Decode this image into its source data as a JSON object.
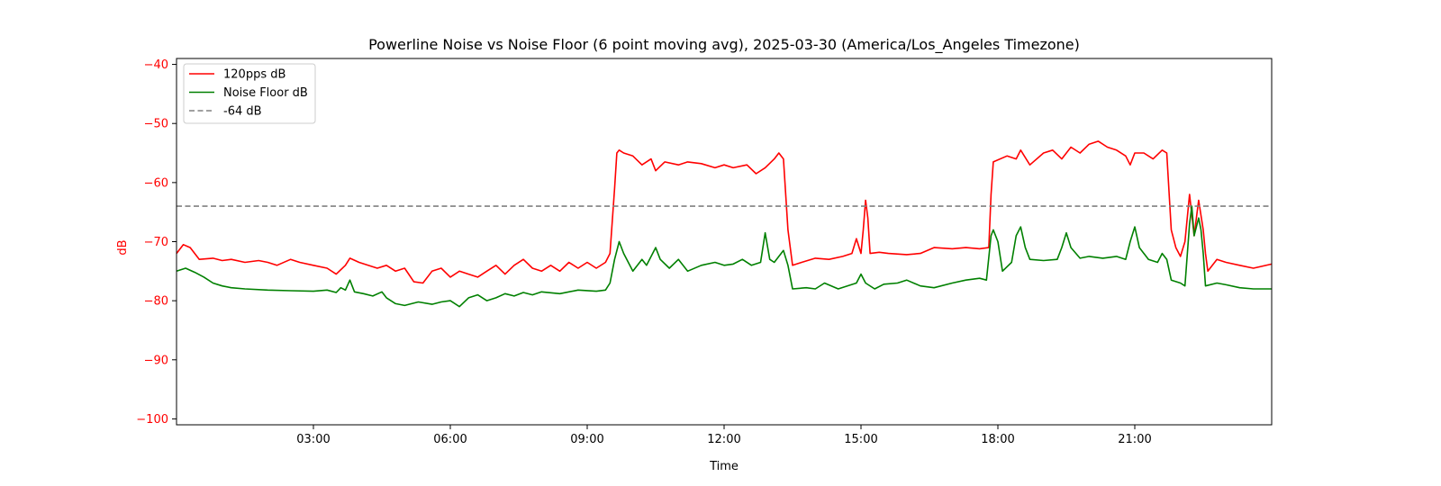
{
  "chart_data": {
    "type": "line",
    "title": "Powerline Noise vs Noise Floor (6 point moving avg), 2025-03-30 (America/Los_Angeles Timezone)",
    "xlabel": "Time",
    "ylabel": "dB",
    "xlim": [
      0,
      24
    ],
    "ylim": [
      -101,
      -39
    ],
    "x_ticks": [
      {
        "value": 3,
        "label": "03:00"
      },
      {
        "value": 6,
        "label": "06:00"
      },
      {
        "value": 9,
        "label": "09:00"
      },
      {
        "value": 12,
        "label": "12:00"
      },
      {
        "value": 15,
        "label": "15:00"
      },
      {
        "value": 18,
        "label": "18:00"
      },
      {
        "value": 21,
        "label": "21:00"
      }
    ],
    "y_ticks": [
      -40,
      -50,
      -60,
      -70,
      -80,
      -90,
      -100
    ],
    "y_tick_color": "#ff0000",
    "grid": false,
    "legend_position": "top-left",
    "series": [
      {
        "name": "120pps dB",
        "color": "#ff0000",
        "style": "solid",
        "points": [
          [
            0.0,
            -72
          ],
          [
            0.15,
            -70.5
          ],
          [
            0.3,
            -71
          ],
          [
            0.5,
            -73
          ],
          [
            0.8,
            -72.8
          ],
          [
            1.0,
            -73.2
          ],
          [
            1.2,
            -73
          ],
          [
            1.5,
            -73.5
          ],
          [
            1.8,
            -73.2
          ],
          [
            2.0,
            -73.5
          ],
          [
            2.2,
            -74
          ],
          [
            2.5,
            -73
          ],
          [
            2.7,
            -73.5
          ],
          [
            3.0,
            -74
          ],
          [
            3.3,
            -74.5
          ],
          [
            3.5,
            -75.5
          ],
          [
            3.7,
            -74
          ],
          [
            3.8,
            -72.8
          ],
          [
            4.0,
            -73.5
          ],
          [
            4.2,
            -74
          ],
          [
            4.4,
            -74.5
          ],
          [
            4.6,
            -74
          ],
          [
            4.8,
            -75
          ],
          [
            5.0,
            -74.5
          ],
          [
            5.2,
            -76.8
          ],
          [
            5.4,
            -77
          ],
          [
            5.6,
            -75
          ],
          [
            5.8,
            -74.5
          ],
          [
            6.0,
            -76
          ],
          [
            6.2,
            -75
          ],
          [
            6.4,
            -75.5
          ],
          [
            6.6,
            -76
          ],
          [
            6.8,
            -75
          ],
          [
            7.0,
            -74
          ],
          [
            7.2,
            -75.5
          ],
          [
            7.4,
            -74
          ],
          [
            7.6,
            -73
          ],
          [
            7.8,
            -74.5
          ],
          [
            8.0,
            -75
          ],
          [
            8.2,
            -74
          ],
          [
            8.4,
            -75
          ],
          [
            8.6,
            -73.5
          ],
          [
            8.8,
            -74.5
          ],
          [
            9.0,
            -73.5
          ],
          [
            9.2,
            -74.5
          ],
          [
            9.4,
            -73.5
          ],
          [
            9.5,
            -72
          ],
          [
            9.6,
            -61
          ],
          [
            9.65,
            -55
          ],
          [
            9.7,
            -54.5
          ],
          [
            9.8,
            -55
          ],
          [
            10.0,
            -55.5
          ],
          [
            10.2,
            -57
          ],
          [
            10.4,
            -56
          ],
          [
            10.5,
            -58
          ],
          [
            10.7,
            -56.5
          ],
          [
            11.0,
            -57
          ],
          [
            11.2,
            -56.5
          ],
          [
            11.5,
            -56.8
          ],
          [
            11.8,
            -57.5
          ],
          [
            12.0,
            -57
          ],
          [
            12.2,
            -57.5
          ],
          [
            12.5,
            -57
          ],
          [
            12.7,
            -58.5
          ],
          [
            12.9,
            -57.5
          ],
          [
            13.1,
            -56
          ],
          [
            13.2,
            -55
          ],
          [
            13.3,
            -56
          ],
          [
            13.4,
            -68
          ],
          [
            13.5,
            -74
          ],
          [
            13.7,
            -73.5
          ],
          [
            14.0,
            -72.8
          ],
          [
            14.3,
            -73
          ],
          [
            14.6,
            -72.5
          ],
          [
            14.8,
            -72
          ],
          [
            14.9,
            -69.5
          ],
          [
            15.0,
            -72
          ],
          [
            15.05,
            -68
          ],
          [
            15.1,
            -63
          ],
          [
            15.15,
            -66
          ],
          [
            15.2,
            -72
          ],
          [
            15.4,
            -71.8
          ],
          [
            15.6,
            -72
          ],
          [
            16.0,
            -72.2
          ],
          [
            16.3,
            -72
          ],
          [
            16.6,
            -71
          ],
          [
            17.0,
            -71.2
          ],
          [
            17.3,
            -71
          ],
          [
            17.6,
            -71.2
          ],
          [
            17.8,
            -71
          ],
          [
            17.85,
            -62
          ],
          [
            17.9,
            -56.5
          ],
          [
            18.2,
            -55.5
          ],
          [
            18.4,
            -56
          ],
          [
            18.5,
            -54.5
          ],
          [
            18.7,
            -57
          ],
          [
            19.0,
            -55
          ],
          [
            19.2,
            -54.5
          ],
          [
            19.4,
            -56
          ],
          [
            19.6,
            -54
          ],
          [
            19.8,
            -55
          ],
          [
            20.0,
            -53.5
          ],
          [
            20.2,
            -53
          ],
          [
            20.4,
            -54
          ],
          [
            20.6,
            -54.5
          ],
          [
            20.8,
            -55.5
          ],
          [
            20.9,
            -57
          ],
          [
            21.0,
            -55
          ],
          [
            21.2,
            -55
          ],
          [
            21.4,
            -56
          ],
          [
            21.6,
            -54.5
          ],
          [
            21.7,
            -55
          ],
          [
            21.8,
            -68
          ],
          [
            21.9,
            -71
          ],
          [
            22.0,
            -72.5
          ],
          [
            22.1,
            -70
          ],
          [
            22.2,
            -62
          ],
          [
            22.3,
            -69
          ],
          [
            22.4,
            -63
          ],
          [
            22.5,
            -68
          ],
          [
            22.55,
            -72
          ],
          [
            22.6,
            -75
          ],
          [
            22.8,
            -73
          ],
          [
            23.0,
            -73.5
          ],
          [
            23.3,
            -74
          ],
          [
            23.6,
            -74.5
          ],
          [
            24.0,
            -73.8
          ]
        ]
      },
      {
        "name": "Noise Floor dB",
        "color": "#008000",
        "style": "solid",
        "points": [
          [
            0.0,
            -75
          ],
          [
            0.2,
            -74.5
          ],
          [
            0.4,
            -75.2
          ],
          [
            0.6,
            -76
          ],
          [
            0.8,
            -77
          ],
          [
            1.0,
            -77.5
          ],
          [
            1.2,
            -77.8
          ],
          [
            1.5,
            -78
          ],
          [
            2.0,
            -78.2
          ],
          [
            2.5,
            -78.3
          ],
          [
            3.0,
            -78.4
          ],
          [
            3.3,
            -78.2
          ],
          [
            3.5,
            -78.6
          ],
          [
            3.6,
            -77.8
          ],
          [
            3.7,
            -78.2
          ],
          [
            3.8,
            -76.5
          ],
          [
            3.9,
            -78.5
          ],
          [
            4.1,
            -78.8
          ],
          [
            4.3,
            -79.2
          ],
          [
            4.5,
            -78.5
          ],
          [
            4.6,
            -79.5
          ],
          [
            4.8,
            -80.5
          ],
          [
            5.0,
            -80.8
          ],
          [
            5.3,
            -80.2
          ],
          [
            5.6,
            -80.6
          ],
          [
            5.8,
            -80.2
          ],
          [
            6.0,
            -80
          ],
          [
            6.2,
            -81
          ],
          [
            6.4,
            -79.5
          ],
          [
            6.6,
            -79
          ],
          [
            6.8,
            -80
          ],
          [
            7.0,
            -79.5
          ],
          [
            7.2,
            -78.8
          ],
          [
            7.4,
            -79.2
          ],
          [
            7.6,
            -78.6
          ],
          [
            7.8,
            -79
          ],
          [
            8.0,
            -78.5
          ],
          [
            8.4,
            -78.8
          ],
          [
            8.8,
            -78.2
          ],
          [
            9.2,
            -78.4
          ],
          [
            9.4,
            -78.2
          ],
          [
            9.5,
            -77
          ],
          [
            9.6,
            -73
          ],
          [
            9.7,
            -70
          ],
          [
            9.8,
            -72
          ],
          [
            10.0,
            -75
          ],
          [
            10.2,
            -73
          ],
          [
            10.3,
            -74
          ],
          [
            10.5,
            -71
          ],
          [
            10.6,
            -73
          ],
          [
            10.8,
            -74.5
          ],
          [
            11.0,
            -73
          ],
          [
            11.2,
            -75
          ],
          [
            11.5,
            -74
          ],
          [
            11.8,
            -73.5
          ],
          [
            12.0,
            -74
          ],
          [
            12.2,
            -73.8
          ],
          [
            12.4,
            -73
          ],
          [
            12.6,
            -74
          ],
          [
            12.8,
            -73.5
          ],
          [
            12.9,
            -68.5
          ],
          [
            13.0,
            -73
          ],
          [
            13.1,
            -73.5
          ],
          [
            13.3,
            -71.5
          ],
          [
            13.4,
            -74
          ],
          [
            13.5,
            -78
          ],
          [
            13.8,
            -77.8
          ],
          [
            14.0,
            -78
          ],
          [
            14.2,
            -77
          ],
          [
            14.5,
            -78
          ],
          [
            14.7,
            -77.5
          ],
          [
            14.9,
            -77
          ],
          [
            15.0,
            -75.5
          ],
          [
            15.1,
            -77
          ],
          [
            15.3,
            -78
          ],
          [
            15.5,
            -77.2
          ],
          [
            15.8,
            -77
          ],
          [
            16.0,
            -76.5
          ],
          [
            16.3,
            -77.5
          ],
          [
            16.6,
            -77.8
          ],
          [
            17.0,
            -77
          ],
          [
            17.3,
            -76.5
          ],
          [
            17.6,
            -76.2
          ],
          [
            17.75,
            -76.5
          ],
          [
            17.85,
            -69
          ],
          [
            17.9,
            -68
          ],
          [
            18.0,
            -70
          ],
          [
            18.1,
            -75
          ],
          [
            18.3,
            -73.5
          ],
          [
            18.4,
            -69
          ],
          [
            18.5,
            -67.5
          ],
          [
            18.6,
            -71
          ],
          [
            18.7,
            -73
          ],
          [
            19.0,
            -73.2
          ],
          [
            19.3,
            -73
          ],
          [
            19.4,
            -71
          ],
          [
            19.5,
            -68.5
          ],
          [
            19.6,
            -71
          ],
          [
            19.8,
            -72.8
          ],
          [
            20.0,
            -72.5
          ],
          [
            20.3,
            -72.8
          ],
          [
            20.6,
            -72.5
          ],
          [
            20.8,
            -73
          ],
          [
            20.9,
            -70
          ],
          [
            21.0,
            -67.5
          ],
          [
            21.1,
            -71
          ],
          [
            21.3,
            -73
          ],
          [
            21.5,
            -73.5
          ],
          [
            21.6,
            -72
          ],
          [
            21.7,
            -73
          ],
          [
            21.8,
            -76.5
          ],
          [
            22.0,
            -77
          ],
          [
            22.1,
            -77.5
          ],
          [
            22.2,
            -67
          ],
          [
            22.25,
            -64
          ],
          [
            22.3,
            -69
          ],
          [
            22.4,
            -66
          ],
          [
            22.45,
            -68
          ],
          [
            22.5,
            -72
          ],
          [
            22.55,
            -77.5
          ],
          [
            22.8,
            -77
          ],
          [
            23.0,
            -77.3
          ],
          [
            23.3,
            -77.8
          ],
          [
            23.6,
            -78
          ],
          [
            24.0,
            -78
          ]
        ]
      },
      {
        "name": "-64 dB",
        "color": "#808080",
        "style": "dashed",
        "points": [
          [
            0,
            -64
          ],
          [
            24,
            -64
          ]
        ]
      }
    ]
  }
}
